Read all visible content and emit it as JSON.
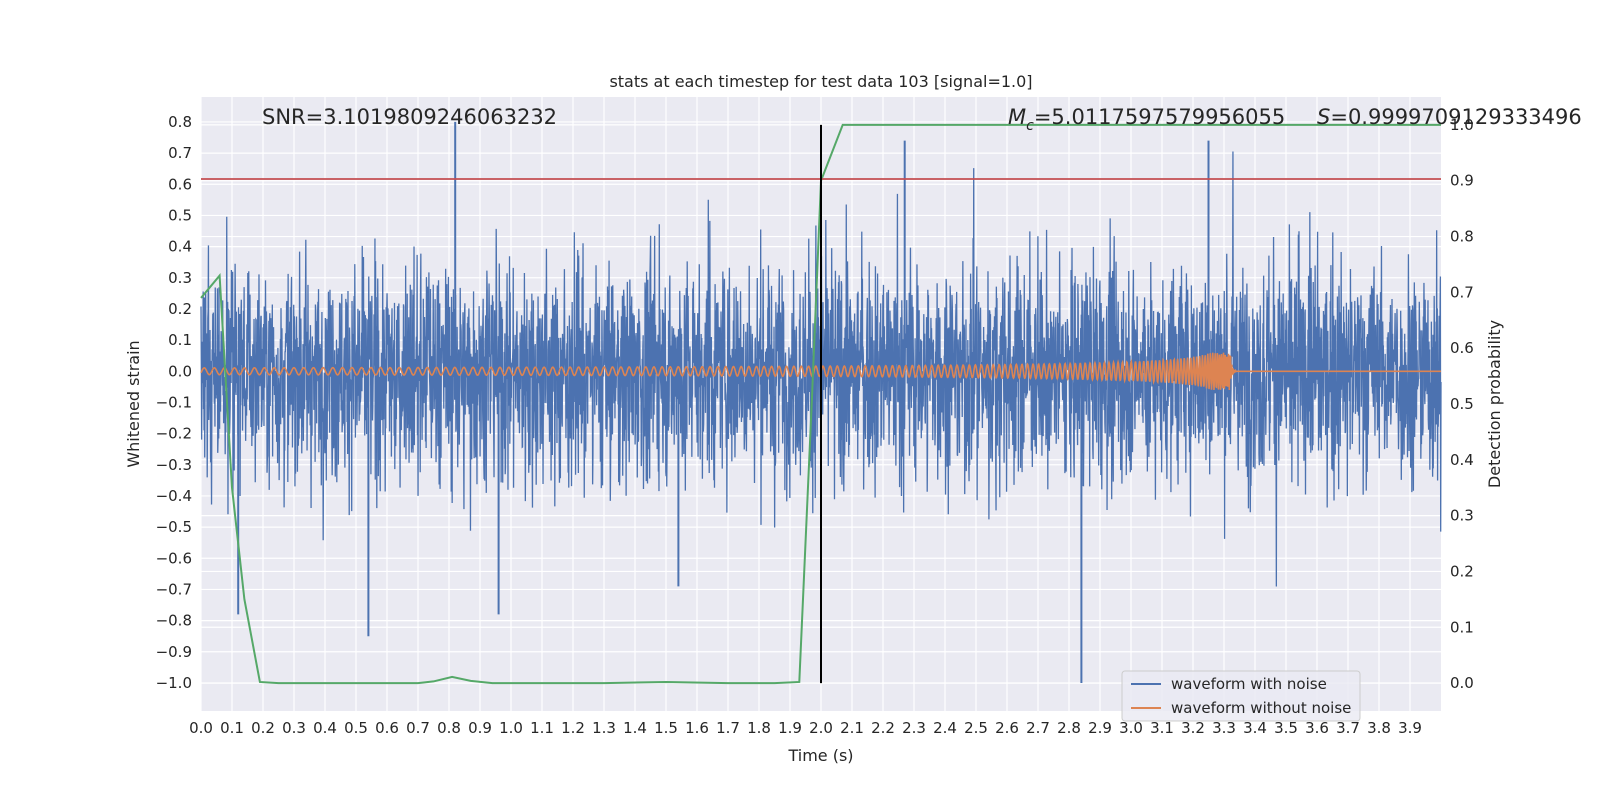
{
  "chart_data": {
    "type": "line",
    "title": "stats at each timestep for test data 103 [signal=1.0]",
    "xlabel": "Time (s)",
    "ylabel_left": "Whitened strain",
    "ylabel_right": "Detection probability",
    "xlim": [
      0.0,
      4.0
    ],
    "ylim_left": [
      -1.09,
      0.88
    ],
    "ylim_right": [
      -0.05,
      1.05
    ],
    "x_ticks": [
      "0.0",
      "0.1",
      "0.2",
      "0.3",
      "0.4",
      "0.5",
      "0.6",
      "0.7",
      "0.8",
      "0.9",
      "1.0",
      "1.1",
      "1.2",
      "1.3",
      "1.4",
      "1.5",
      "1.6",
      "1.7",
      "1.8",
      "1.9",
      "2.0",
      "2.1",
      "2.2",
      "2.3",
      "2.4",
      "2.5",
      "2.6",
      "2.7",
      "2.8",
      "2.9",
      "3.0",
      "3.1",
      "3.2",
      "3.3",
      "3.4",
      "3.5",
      "3.6",
      "3.7",
      "3.8",
      "3.9"
    ],
    "y_ticks_left": [
      "0.8",
      "0.7",
      "0.6",
      "0.5",
      "0.4",
      "0.3",
      "0.2",
      "0.1",
      "0.0",
      "−0.1",
      "−0.2",
      "−0.3",
      "−0.4",
      "−0.5",
      "−0.6",
      "−0.7",
      "−0.8",
      "−0.9",
      "−1.0"
    ],
    "y_ticks_right": [
      "1.0",
      "0.9",
      "0.8",
      "0.7",
      "0.6",
      "0.5",
      "0.4",
      "0.3",
      "0.2",
      "0.1",
      "0.0"
    ],
    "annotations": {
      "snr": "SNR=3.1019809246063232",
      "mc_symbol": "M",
      "mc_sub": "c",
      "mc_value": "=5.0117597579956055",
      "s_symbol": "S",
      "s_value": "=0.9999709129333496"
    },
    "series": [
      {
        "name": "waveform with noise",
        "color": "#4c72b0",
        "axis": "left",
        "description": "whitened strain with noise, roughly in [-1.0, 0.8]",
        "spikes": [
          {
            "x": 0.54,
            "y": -0.85
          },
          {
            "x": 0.82,
            "y": 0.8
          },
          {
            "x": 0.96,
            "y": -0.78
          },
          {
            "x": 1.54,
            "y": -0.69
          },
          {
            "x": 2.84,
            "y": -1.0
          },
          {
            "x": 2.27,
            "y": 0.74
          },
          {
            "x": 3.25,
            "y": 0.74
          },
          {
            "x": 0.12,
            "y": -0.78
          }
        ]
      },
      {
        "name": "waveform without noise",
        "color": "#dd8452",
        "axis": "left",
        "description": "chirp signal, amplitude grows to ~0.06 and merges at ~3.32 s, zero afterwards",
        "merger_time": 3.32,
        "peak_amplitude": 0.06
      },
      {
        "name": "detection probability",
        "color": "#55a868",
        "axis": "right",
        "x": [
          0.0,
          0.06,
          0.1,
          0.14,
          0.19,
          0.25,
          0.4,
          0.55,
          0.7,
          0.75,
          0.81,
          0.87,
          0.94,
          1.1,
          1.3,
          1.5,
          1.7,
          1.85,
          1.93,
          1.97,
          2.0,
          2.07,
          2.2,
          2.5,
          3.0,
          3.5,
          4.0
        ],
        "y": [
          0.69,
          0.73,
          0.35,
          0.15,
          0.002,
          0.0,
          0.0,
          0.0,
          0.0,
          0.003,
          0.011,
          0.004,
          0.0,
          0.0,
          0.0,
          0.002,
          0.0,
          0.0,
          0.002,
          0.5,
          0.9,
          1.0,
          1.0,
          1.0,
          1.0,
          1.0,
          1.0
        ]
      }
    ],
    "threshold_line": {
      "y_left": 0.617,
      "color": "#c44e52"
    },
    "vertical_line": {
      "x": 2.0,
      "color": "#000000"
    },
    "legend": {
      "placement": "lower-right",
      "entries": [
        {
          "label": "waveform with noise",
          "color": "#4c72b0"
        },
        {
          "label": "waveform without noise",
          "color": "#dd8452"
        }
      ]
    },
    "colors": {
      "axes_bg": "#eaeaf2",
      "grid": "#ffffff"
    }
  }
}
